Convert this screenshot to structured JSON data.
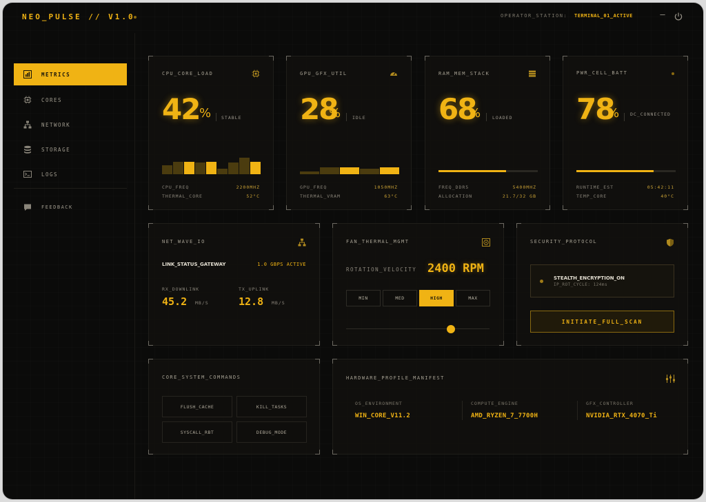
{
  "app": {
    "brand": "NEO_PULSE // V1.0",
    "operator_label": "OPERATOR_STATION:",
    "operator_value": "TERMINAL_01_ACTIVE",
    "minimize_symbol": "–"
  },
  "sidebar": {
    "items": [
      {
        "label": "METRICS",
        "icon": "bar-chart-icon",
        "active": true
      },
      {
        "label": "CORES",
        "icon": "chip-icon",
        "active": false
      },
      {
        "label": "NETWORK",
        "icon": "network-icon",
        "active": false
      },
      {
        "label": "STORAGE",
        "icon": "database-icon",
        "active": false
      },
      {
        "label": "LOGS",
        "icon": "terminal-icon",
        "active": false
      }
    ],
    "feedback_label": "FEEDBACK"
  },
  "cpu": {
    "title": "CPU_CORE_LOAD",
    "value": "42",
    "unit": "%",
    "state": "STABLE",
    "icon": "chip-icon",
    "rows": [
      {
        "label": "CPU_FREQ",
        "value": "2200MHZ"
      },
      {
        "label": "THERMAL_CORE",
        "value": "52°C"
      }
    ],
    "bar_levels": [
      0.45,
      0.65,
      0.65,
      0.6,
      0.65,
      0.3,
      0.6,
      0.85,
      0.65
    ],
    "bar_highlight": [
      false,
      false,
      true,
      false,
      true,
      false,
      false,
      false,
      true
    ]
  },
  "gpu": {
    "title": "GPU_GFX_UTIL",
    "value": "28",
    "unit": "%",
    "state": "IDLE",
    "icon": "gauge-icon",
    "rows": [
      {
        "label": "GPU_FREQ",
        "value": "1050MHZ"
      },
      {
        "label": "THERMAL_VRAM",
        "value": "63°C"
      }
    ],
    "bar_levels": [
      0.15,
      0.35,
      0.35,
      0.3,
      0.35
    ],
    "bar_highlight": [
      false,
      false,
      true,
      false,
      true
    ]
  },
  "ram": {
    "title": "RAM_MEM_STACK",
    "value": "68",
    "unit": "%",
    "state": "LOADED",
    "icon": "stack-icon",
    "progress": 0.68,
    "rows": [
      {
        "label": "FREQ_DDR5",
        "value": "5400MHZ"
      },
      {
        "label": "ALLOCATION",
        "value": "21.7/32 GB"
      }
    ]
  },
  "pwr": {
    "title": "PWR_CELL_BATT",
    "value": "78",
    "unit": "%",
    "state": "DC_CONNECTED",
    "icon": "status-dot-icon",
    "progress": 0.78,
    "rows": [
      {
        "label": "RUNTIME_EST",
        "value": "05:42:11"
      },
      {
        "label": "TEMP_CORE",
        "value": "40°C"
      }
    ]
  },
  "net": {
    "title": "NET_WAVE_IO",
    "status_label": "LINK_STATUS_GATEWAY",
    "status_value": "1.0 GBPS ACTIVE",
    "rx_label": "RX_DOWNLINK",
    "rx_value": "45.2",
    "rx_unit": "MB/S",
    "tx_label": "TX_UPLINK",
    "tx_value": "12.8",
    "tx_unit": "MB/S"
  },
  "fan": {
    "title": "FAN_THERMAL_MGMT",
    "velocity_label": "ROTATION_VELOCITY",
    "velocity_value": "2400 RPM",
    "modes": [
      "MIN",
      "MED",
      "HIGH",
      "MAX"
    ],
    "selected_mode": "HIGH",
    "slider_level": 0.73
  },
  "security": {
    "title": "SECURITY_PROTOCOL",
    "status_title": "STEALTH_ENCRYPTION_ON",
    "status_sub": "IP_ROT_CYCLE: 124ms",
    "action_label": "INITIATE_FULL_SCAN"
  },
  "commands": {
    "title": "CORE_SYSTEM_COMMANDS",
    "buttons": [
      "FLUSH_CACHE",
      "KILL_TASKS",
      "SYSCALL_RBT",
      "DEBUG_MODE"
    ]
  },
  "hardware": {
    "title": "HARDWARE_PROFILE_MANIFEST",
    "columns": [
      {
        "label": "OS_ENVIRONMENT",
        "value": "WIN_CORE_V11.2"
      },
      {
        "label": "COMPUTE_ENGINE",
        "value": "AMD_RYZEN_7_7700H"
      },
      {
        "label": "GFX_CONTROLLER",
        "value": "NVIDIA_RTX_4070_Ti"
      }
    ]
  },
  "colors": {
    "accent": "#f0b314",
    "background": "#0b0b0a",
    "muted_bar": "#4b3c0f"
  }
}
